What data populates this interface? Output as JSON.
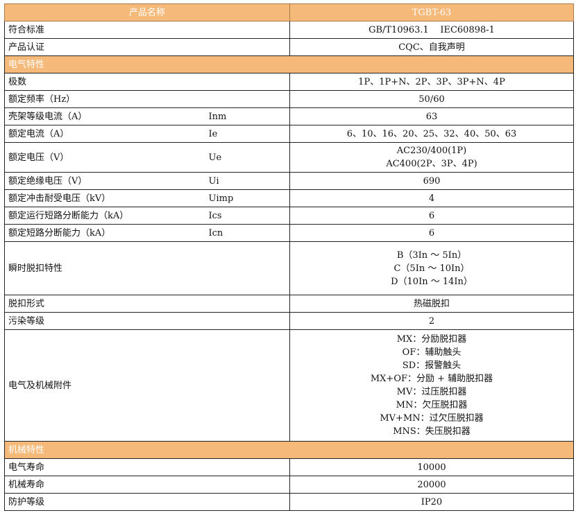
{
  "header": {
    "name_label": "产品名称",
    "model": "TGBT-63"
  },
  "rows_top": [
    {
      "label": "符合标准",
      "value": "GB/T10963.1    IEC60898-1"
    },
    {
      "label": "产品认证",
      "value": "CQC、自我声明"
    }
  ],
  "section_electrical": "电气特性",
  "electrical": [
    {
      "label": "极数",
      "code": "",
      "lines": [
        "1P、1P+N、2P、3P、3P+N、4P"
      ]
    },
    {
      "label": "额定频率（Hz）",
      "code": "",
      "lines": [
        "50/60"
      ]
    },
    {
      "label": "壳架等级电流（A）",
      "code": "Inm",
      "lines": [
        "63"
      ]
    },
    {
      "label": "额定电流（A）",
      "code": "Ie",
      "lines": [
        "6、10、16、20、25、32、40、50、63"
      ]
    },
    {
      "label": "额定电压（V）",
      "code": "Ue",
      "lines": [
        "AC230/400(1P)",
        "AC400(2P、3P、4P)"
      ]
    },
    {
      "label": "额定绝缘电压（V）",
      "code": "Ui",
      "lines": [
        "690"
      ]
    },
    {
      "label": "额定冲击耐受电压（kV）",
      "code": "Uimp",
      "lines": [
        "4"
      ]
    },
    {
      "label": "额定运行短路分断能力（kA）",
      "code": "Ics",
      "lines": [
        "6"
      ]
    },
    {
      "label": "额定短路分断能力（kA）",
      "code": "Icn",
      "lines": [
        "6"
      ]
    },
    {
      "label": "瞬时脱扣特性",
      "code": "",
      "lines": [
        "B（3In ～ 5In）",
        "C（5In ～ 10In）",
        "D（10In ～ 14In）"
      ]
    },
    {
      "label": "脱扣形式",
      "code": "",
      "lines": [
        "热磁脱扣"
      ]
    },
    {
      "label": "污染等级",
      "code": "",
      "lines": [
        "2"
      ]
    },
    {
      "label": "电气及机械附件",
      "code": "",
      "lines": [
        "MX：分励脱扣器",
        "OF：辅助触头",
        "SD：报警触头",
        "MX+OF：分励 + 辅助脱扣器",
        "MV：过压脱扣器",
        "MN：欠压脱扣器",
        "MV+MN：过欠压脱扣器",
        "MNS：失压脱扣器"
      ]
    }
  ],
  "section_mechanical": "机械特性",
  "mechanical": [
    {
      "label": "电气寿命",
      "value": "10000"
    },
    {
      "label": "机械寿命",
      "value": "20000"
    },
    {
      "label": "防护等级",
      "value": "IP20"
    }
  ],
  "colors": {
    "header_bg": "#f5b97a",
    "header_text": "#ffffff"
  }
}
